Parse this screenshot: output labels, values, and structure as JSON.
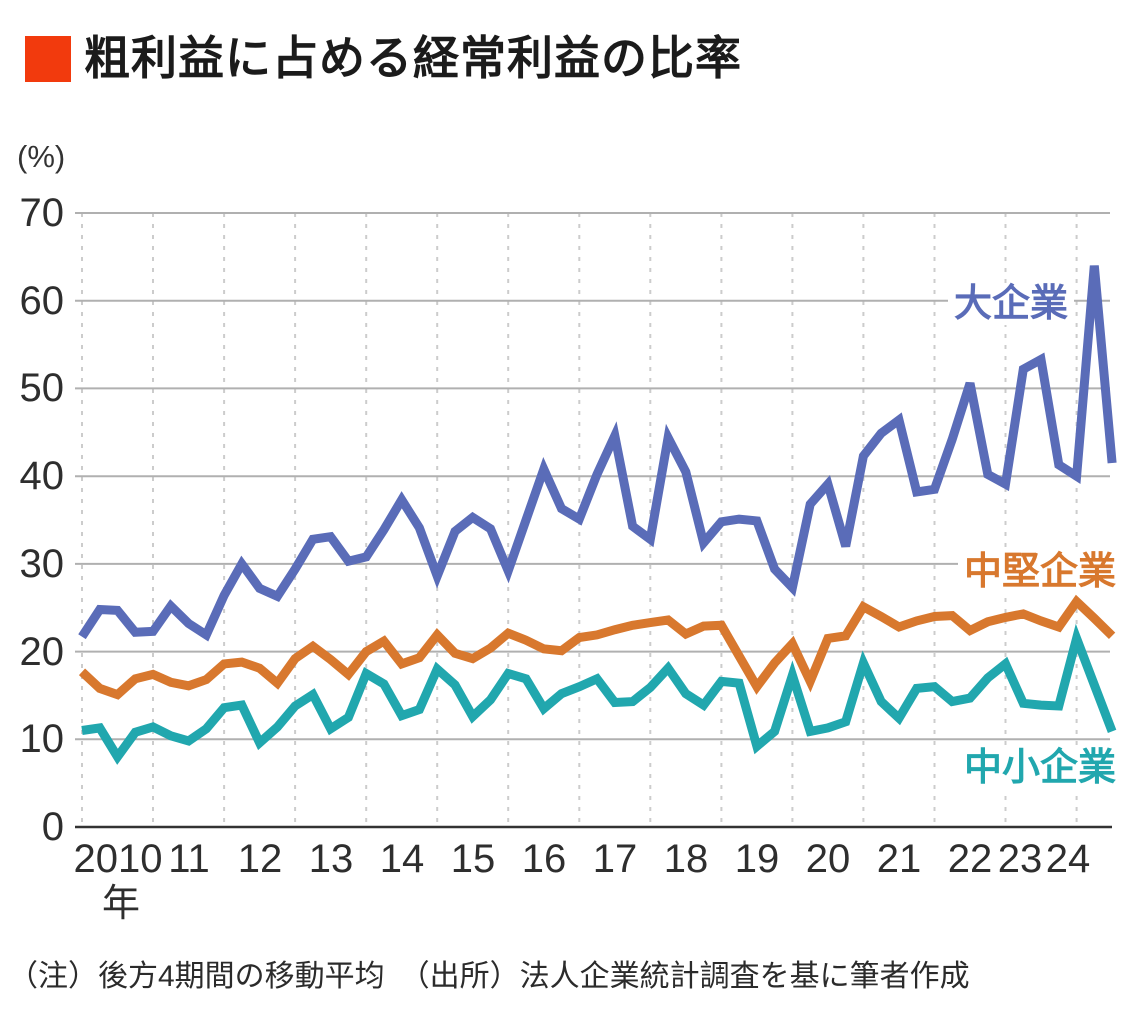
{
  "header": {
    "title": "粗利益に占める経常利益の比率",
    "accent_color": "#F23A0D"
  },
  "axis": {
    "unit_label": "(%)",
    "y_ticks": [
      70,
      60,
      50,
      40,
      30,
      20,
      10,
      0
    ],
    "years": [
      "2010",
      "11",
      "12",
      "13",
      "14",
      "15",
      "16",
      "17",
      "18",
      "19",
      "20",
      "21",
      "22",
      "23",
      "24"
    ],
    "year_suffix": "年"
  },
  "chart_data": {
    "type": "line",
    "title": "粗利益に占める経常利益の比率",
    "ylabel": "(%)",
    "ylim": [
      0,
      70
    ],
    "x_unit": "quarter",
    "x_start": "2010Q1",
    "x_end": "2024Q3",
    "grid": {
      "horizontal": "solid",
      "vertical": "dashed-per-year"
    },
    "legend_position": "inline-right",
    "colors": {
      "gridline": "#b0b0b0",
      "grid_dashed": "#cccccc",
      "zero_axis": "#333333"
    },
    "series": [
      {
        "name": "大企業",
        "color": "#5A6CB8",
        "values": [
          21.7,
          24.8,
          24.7,
          22.2,
          22.3,
          25.2,
          23.2,
          21.9,
          26.4,
          30.0,
          27.2,
          26.3,
          29.4,
          32.8,
          33.1,
          30.3,
          30.8,
          33.9,
          37.3,
          34.1,
          28.6,
          33.7,
          35.3,
          34.0,
          29.2,
          35.0,
          40.8,
          36.3,
          35.1,
          40.2,
          44.6,
          34.3,
          32.8,
          44.4,
          40.5,
          32.4,
          34.8,
          35.1,
          34.9,
          29.4,
          27.3,
          36.8,
          39.1,
          32.0,
          42.3,
          44.9,
          46.4,
          38.2,
          38.5,
          44.2,
          50.6,
          40.2,
          39.1,
          52.2,
          53.3,
          41.3,
          40.0,
          64.0,
          41.5
        ]
      },
      {
        "name": "中堅企業",
        "color": "#D8782E",
        "values": [
          17.7,
          15.8,
          15.1,
          16.9,
          17.4,
          16.5,
          16.1,
          16.8,
          18.6,
          18.8,
          18.1,
          16.4,
          19.2,
          20.6,
          19.1,
          17.4,
          20.0,
          21.2,
          18.6,
          19.3,
          21.9,
          19.8,
          19.2,
          20.4,
          22.1,
          21.3,
          20.3,
          20.1,
          21.6,
          21.9,
          22.5,
          23.0,
          23.3,
          23.6,
          22.0,
          22.9,
          23.0,
          19.5,
          16.0,
          18.7,
          20.9,
          16.6,
          21.5,
          21.8,
          25.1,
          24.0,
          22.8,
          23.5,
          24.0,
          24.1,
          22.4,
          23.4,
          23.9,
          24.3,
          23.5,
          22.8,
          25.7,
          23.8,
          21.8
        ]
      },
      {
        "name": "中小企業",
        "color": "#21A7AE",
        "values": [
          11.0,
          11.3,
          8.0,
          10.8,
          11.4,
          10.4,
          9.8,
          11.2,
          13.6,
          13.9,
          9.6,
          11.4,
          13.8,
          15.1,
          11.2,
          12.5,
          17.5,
          16.3,
          12.7,
          13.4,
          18.0,
          16.2,
          12.6,
          14.5,
          17.5,
          16.9,
          13.5,
          15.2,
          16.0,
          16.9,
          14.2,
          14.3,
          15.9,
          18.1,
          15.2,
          13.9,
          16.6,
          16.4,
          9.2,
          10.9,
          17.3,
          10.9,
          11.3,
          12.0,
          18.7,
          14.3,
          12.4,
          15.8,
          16.0,
          14.3,
          14.7,
          17.0,
          18.6,
          14.1,
          13.9,
          13.8,
          21.5,
          16.2,
          10.9
        ]
      }
    ]
  },
  "footnote": "（注）後方4期間の移動平均　（出所）法人企業統計調査を基に筆者作成"
}
